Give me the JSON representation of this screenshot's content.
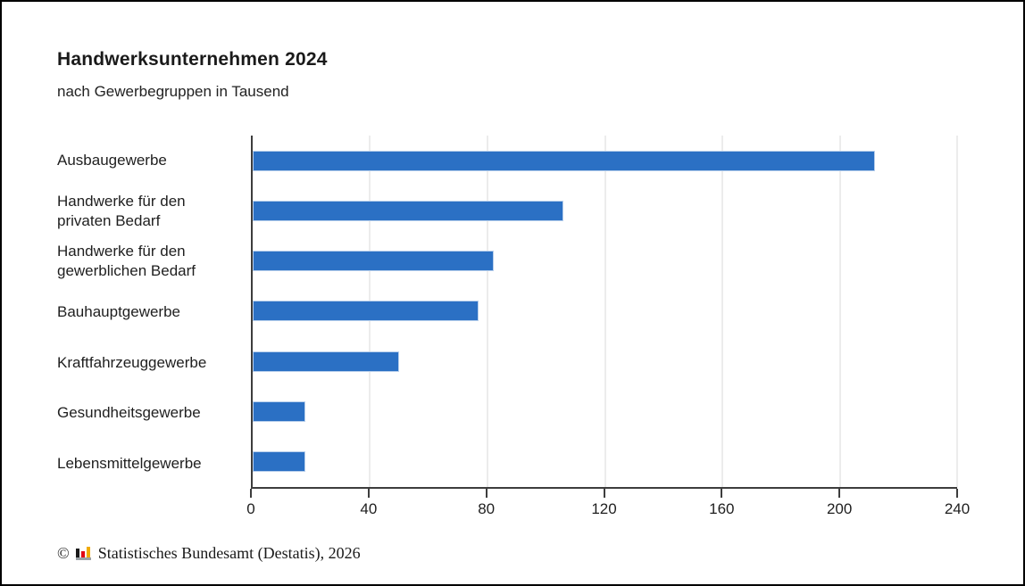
{
  "chart": {
    "title": "Handwerksunternehmen 2024",
    "subtitle": "nach Gewerbegruppen in Tausend"
  },
  "chart_data": {
    "type": "bar",
    "orientation": "horizontal",
    "title": "Handwerksunternehmen 2024",
    "subtitle": "nach Gewerbegruppen in Tausend",
    "unit": "Tausend",
    "categories": [
      "Ausbaugewerbe",
      "Handwerke für den\nprivaten Bedarf",
      "Handwerke für den\ngewerblichen Bedarf",
      "Bauhauptgewerbe",
      "Kraftfahrzeuggewerbe",
      "Gesundheitsgewerbe",
      "Lebensmittelgewerbe"
    ],
    "values": [
      212,
      106,
      82,
      77,
      50,
      18,
      18
    ],
    "xlabel": "",
    "ylabel": "",
    "xlim": [
      0,
      240
    ],
    "xticks": [
      0,
      40,
      80,
      120,
      160,
      200,
      240
    ],
    "grid": true,
    "legend": false,
    "bar_color": "#2b70c4",
    "bar_border_color": "#b9d0ec",
    "gridline_color": "#ececec",
    "axis_color": "#3d3d3d"
  },
  "footer": {
    "copyright_symbol": "©",
    "logo_icon": "destatis-mini-barchart-logo",
    "logo_colors": {
      "bar_black": "#1a1a1a",
      "bar_red": "#e30613",
      "bar_gold": "#f0ab00",
      "base_gray": "#9aa0a5"
    },
    "text": "Statistisches Bundesamt (Destatis), 2026"
  }
}
